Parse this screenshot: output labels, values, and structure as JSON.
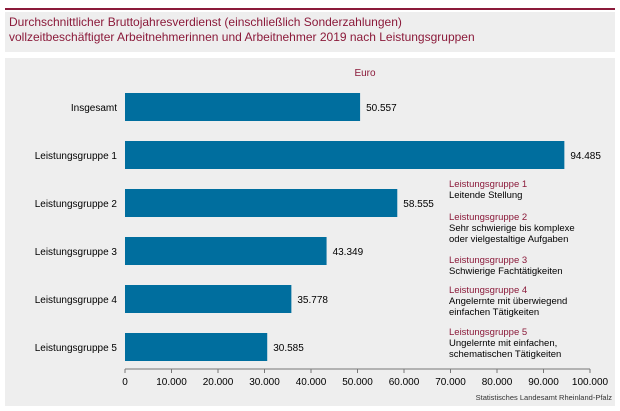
{
  "title": {
    "line1": "Durchschnittlicher Bruttojahresverdienst (einschließlich Sonderzahlungen)",
    "line2": "vollzeitbeschäftigter Arbeitnehmerinnen und Arbeitnehmer 2019 nach Leistungsgruppen"
  },
  "chart_data": {
    "type": "bar",
    "orientation": "horizontal",
    "unit_label": "Euro",
    "categories": [
      "Insgesamt",
      "Leistungsgruppe 1",
      "Leistungsgruppe 2",
      "Leistungsgruppe 3",
      "Leistungsgruppe 4",
      "Leistungsgruppe 5"
    ],
    "values": [
      50557,
      94485,
      58555,
      43349,
      35778,
      30585
    ],
    "value_labels": [
      "50.557",
      "94.485",
      "58.555",
      "43.349",
      "35.778",
      "30.585"
    ],
    "xlim": [
      0,
      100000
    ],
    "xticks": [
      "0",
      "10.000",
      "20.000",
      "30.000",
      "40.000",
      "50.000",
      "60.000",
      "70.000",
      "80.000",
      "90.000",
      "100.000"
    ],
    "bar_color": "#006e9e"
  },
  "legend": [
    {
      "title": "Leistungsgruppe 1",
      "lines": [
        "Leitende Stellung"
      ]
    },
    {
      "title": "Leistungsgruppe 2",
      "lines": [
        "Sehr schwierige bis komplexe",
        "oder vielgestaltige Aufgaben"
      ]
    },
    {
      "title": "Leistungsgruppe 3",
      "lines": [
        "Schwierige Fachtätigkeiten"
      ]
    },
    {
      "title": "Leistungsgruppe 4",
      "lines": [
        "Angelernte mit überwiegend",
        "einfachen Tätigkeiten"
      ]
    },
    {
      "title": "Leistungsgruppe 5",
      "lines": [
        "Ungelernte mit einfachen,",
        "schematischen Tätigkeiten"
      ]
    }
  ],
  "source": "Statistisches Landesamt Rheinland-Pfalz"
}
